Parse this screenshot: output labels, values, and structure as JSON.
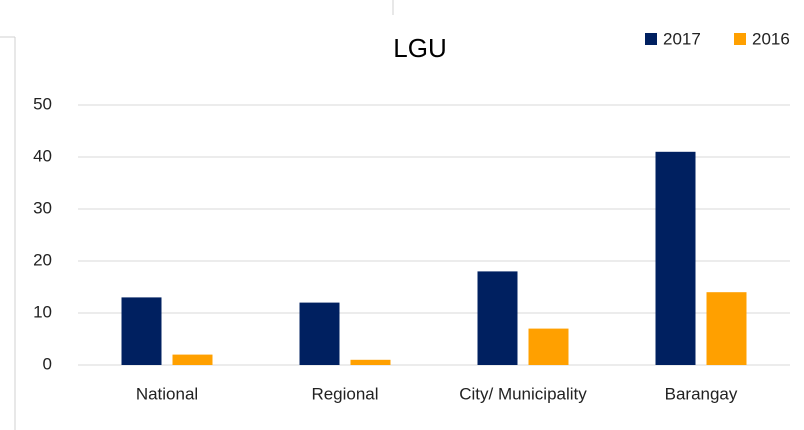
{
  "chart_data": {
    "type": "bar",
    "title": "LGU",
    "categories": [
      "National",
      "Regional",
      "City/ Municipality",
      "Barangay"
    ],
    "series": [
      {
        "name": "2017",
        "color": "#002060",
        "values": [
          13,
          12,
          18,
          41
        ]
      },
      {
        "name": "2016",
        "color": "#ffa000",
        "values": [
          2,
          1,
          7,
          14
        ]
      }
    ],
    "ylim": [
      0,
      50
    ],
    "yticks": [
      0,
      10,
      20,
      30,
      40,
      50
    ],
    "grid": true,
    "legend": "top-right"
  }
}
